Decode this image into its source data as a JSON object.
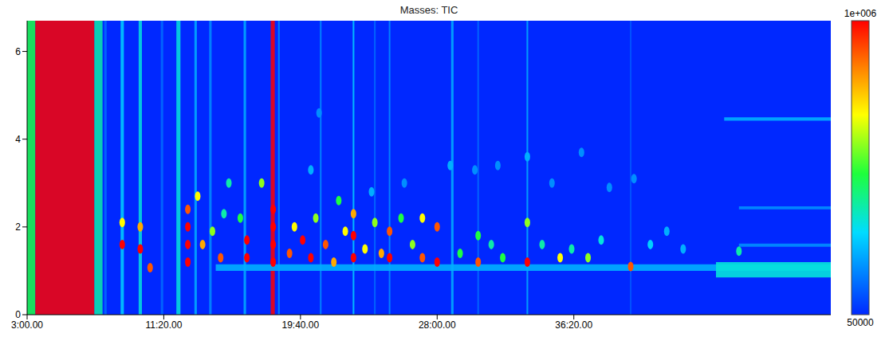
{
  "chart_data": {
    "type": "heatmap",
    "title": "Masses: TIC",
    "xlim": [
      3,
      52
    ],
    "xticks": [
      {
        "value": 3,
        "label": "3:00.00"
      },
      {
        "value": 11.333,
        "label": "11:20.00"
      },
      {
        "value": 19.667,
        "label": "19:40.00"
      },
      {
        "value": 28,
        "label": "28:00.00"
      },
      {
        "value": 36.333,
        "label": "36:20.00"
      }
    ],
    "ylim": [
      0,
      6.7
    ],
    "yticks": [
      0,
      2,
      4,
      6
    ],
    "colorbar": {
      "range": [
        50000,
        1000000
      ],
      "ticks": [
        {
          "value": 1000000,
          "label": "1e+006"
        },
        50000
      ]
    },
    "background_intensity": 50000,
    "streaks": [
      [
        3.0,
        3.5,
        500000
      ],
      [
        3.5,
        7.1,
        1000000
      ],
      [
        7.1,
        7.6,
        400000
      ],
      [
        7.7,
        7.85,
        150000
      ],
      [
        8.7,
        8.9,
        300000
      ],
      [
        9.8,
        10.0,
        350000
      ],
      [
        11.15,
        11.3,
        150000
      ],
      [
        12.1,
        12.35,
        350000
      ],
      [
        13.2,
        13.35,
        250000
      ],
      [
        14.1,
        14.25,
        200000
      ],
      [
        16.2,
        16.35,
        250000
      ],
      [
        17.85,
        18.1,
        1000000
      ],
      [
        18.3,
        18.4,
        200000
      ],
      [
        20.85,
        20.95,
        200000
      ],
      [
        22.85,
        22.95,
        300000
      ],
      [
        24.15,
        24.25,
        150000
      ],
      [
        25.05,
        25.15,
        200000
      ],
      [
        28.85,
        29.0,
        250000
      ],
      [
        30.45,
        30.55,
        150000
      ],
      [
        33.45,
        33.55,
        250000
      ],
      [
        39.75,
        39.85,
        120000
      ]
    ],
    "bands": [
      [
        14.5,
        52,
        1.0,
        1.15,
        250000
      ],
      [
        45,
        52,
        0.85,
        1.2,
        350000
      ],
      [
        45.5,
        52,
        4.42,
        4.5,
        250000
      ],
      [
        46.4,
        52,
        2.4,
        2.47,
        200000
      ],
      [
        46.4,
        52,
        1.55,
        1.62,
        200000
      ]
    ],
    "peaks": [
      [
        28.8,
        3.4,
        250000
      ],
      [
        30.3,
        3.3,
        200000
      ],
      [
        31.7,
        3.4,
        200000
      ],
      [
        33.5,
        3.6,
        250000
      ],
      [
        35.0,
        3.0,
        200000
      ],
      [
        36.8,
        3.7,
        200000
      ],
      [
        38.5,
        2.9,
        200000
      ],
      [
        40.0,
        3.1,
        200000
      ],
      [
        42.0,
        1.9,
        250000
      ],
      [
        24.0,
        2.8,
        250000
      ],
      [
        26.0,
        3.0,
        200000
      ],
      [
        20.3,
        3.3,
        250000
      ],
      [
        15.3,
        3.0,
        400000
      ],
      [
        20.8,
        4.6,
        200000
      ],
      [
        8.8,
        1.6,
        1000000
      ],
      [
        8.8,
        2.1,
        700000
      ],
      [
        9.9,
        1.5,
        1000000
      ],
      [
        9.9,
        2.0,
        800000
      ],
      [
        10.5,
        1.07,
        900000
      ],
      [
        12.8,
        1.2,
        1000000
      ],
      [
        12.8,
        1.6,
        1000000
      ],
      [
        12.8,
        2.0,
        1000000
      ],
      [
        12.8,
        2.4,
        900000
      ],
      [
        13.4,
        2.7,
        700000
      ],
      [
        13.7,
        1.6,
        800000
      ],
      [
        14.3,
        1.9,
        600000
      ],
      [
        14.8,
        1.3,
        900000
      ],
      [
        15.0,
        2.3,
        400000
      ],
      [
        16.4,
        1.3,
        1000000
      ],
      [
        16.4,
        1.7,
        1000000
      ],
      [
        16.0,
        2.2,
        500000
      ],
      [
        18.0,
        1.2,
        1000000
      ],
      [
        18.0,
        1.6,
        1000000
      ],
      [
        18.0,
        2.0,
        1000000
      ],
      [
        18.0,
        2.4,
        1000000
      ],
      [
        17.3,
        3.0,
        600000
      ],
      [
        19.0,
        1.4,
        900000
      ],
      [
        19.3,
        2.0,
        700000
      ],
      [
        19.8,
        1.7,
        1000000
      ],
      [
        20.3,
        1.3,
        1000000
      ],
      [
        20.6,
        2.2,
        600000
      ],
      [
        21.2,
        1.6,
        900000
      ],
      [
        21.7,
        1.2,
        800000
      ],
      [
        22.0,
        2.6,
        500000
      ],
      [
        22.4,
        1.9,
        700000
      ],
      [
        22.9,
        1.3,
        1000000
      ],
      [
        22.9,
        1.8,
        1000000
      ],
      [
        22.9,
        2.3,
        800000
      ],
      [
        23.6,
        1.5,
        700000
      ],
      [
        24.2,
        2.1,
        600000
      ],
      [
        24.6,
        1.4,
        800000
      ],
      [
        25.1,
        1.3,
        1000000
      ],
      [
        25.1,
        1.9,
        900000
      ],
      [
        25.8,
        2.2,
        500000
      ],
      [
        26.5,
        1.6,
        600000
      ],
      [
        27.1,
        1.3,
        900000
      ],
      [
        27.1,
        2.2,
        700000
      ],
      [
        28.0,
        1.2,
        1000000
      ],
      [
        28.0,
        2.0,
        900000
      ],
      [
        29.4,
        1.4,
        500000
      ],
      [
        30.5,
        1.2,
        900000
      ],
      [
        30.5,
        1.8,
        500000
      ],
      [
        31.3,
        1.6,
        400000
      ],
      [
        32.0,
        1.3,
        500000
      ],
      [
        33.5,
        1.2,
        1000000
      ],
      [
        33.5,
        2.1,
        600000
      ],
      [
        34.4,
        1.6,
        400000
      ],
      [
        35.5,
        1.3,
        700000
      ],
      [
        36.2,
        1.5,
        400000
      ],
      [
        37.2,
        1.3,
        600000
      ],
      [
        38.0,
        1.7,
        350000
      ],
      [
        39.8,
        1.1,
        900000
      ],
      [
        41.0,
        1.6,
        300000
      ],
      [
        43.0,
        1.5,
        250000
      ],
      [
        46.4,
        1.45,
        400000
      ]
    ]
  }
}
